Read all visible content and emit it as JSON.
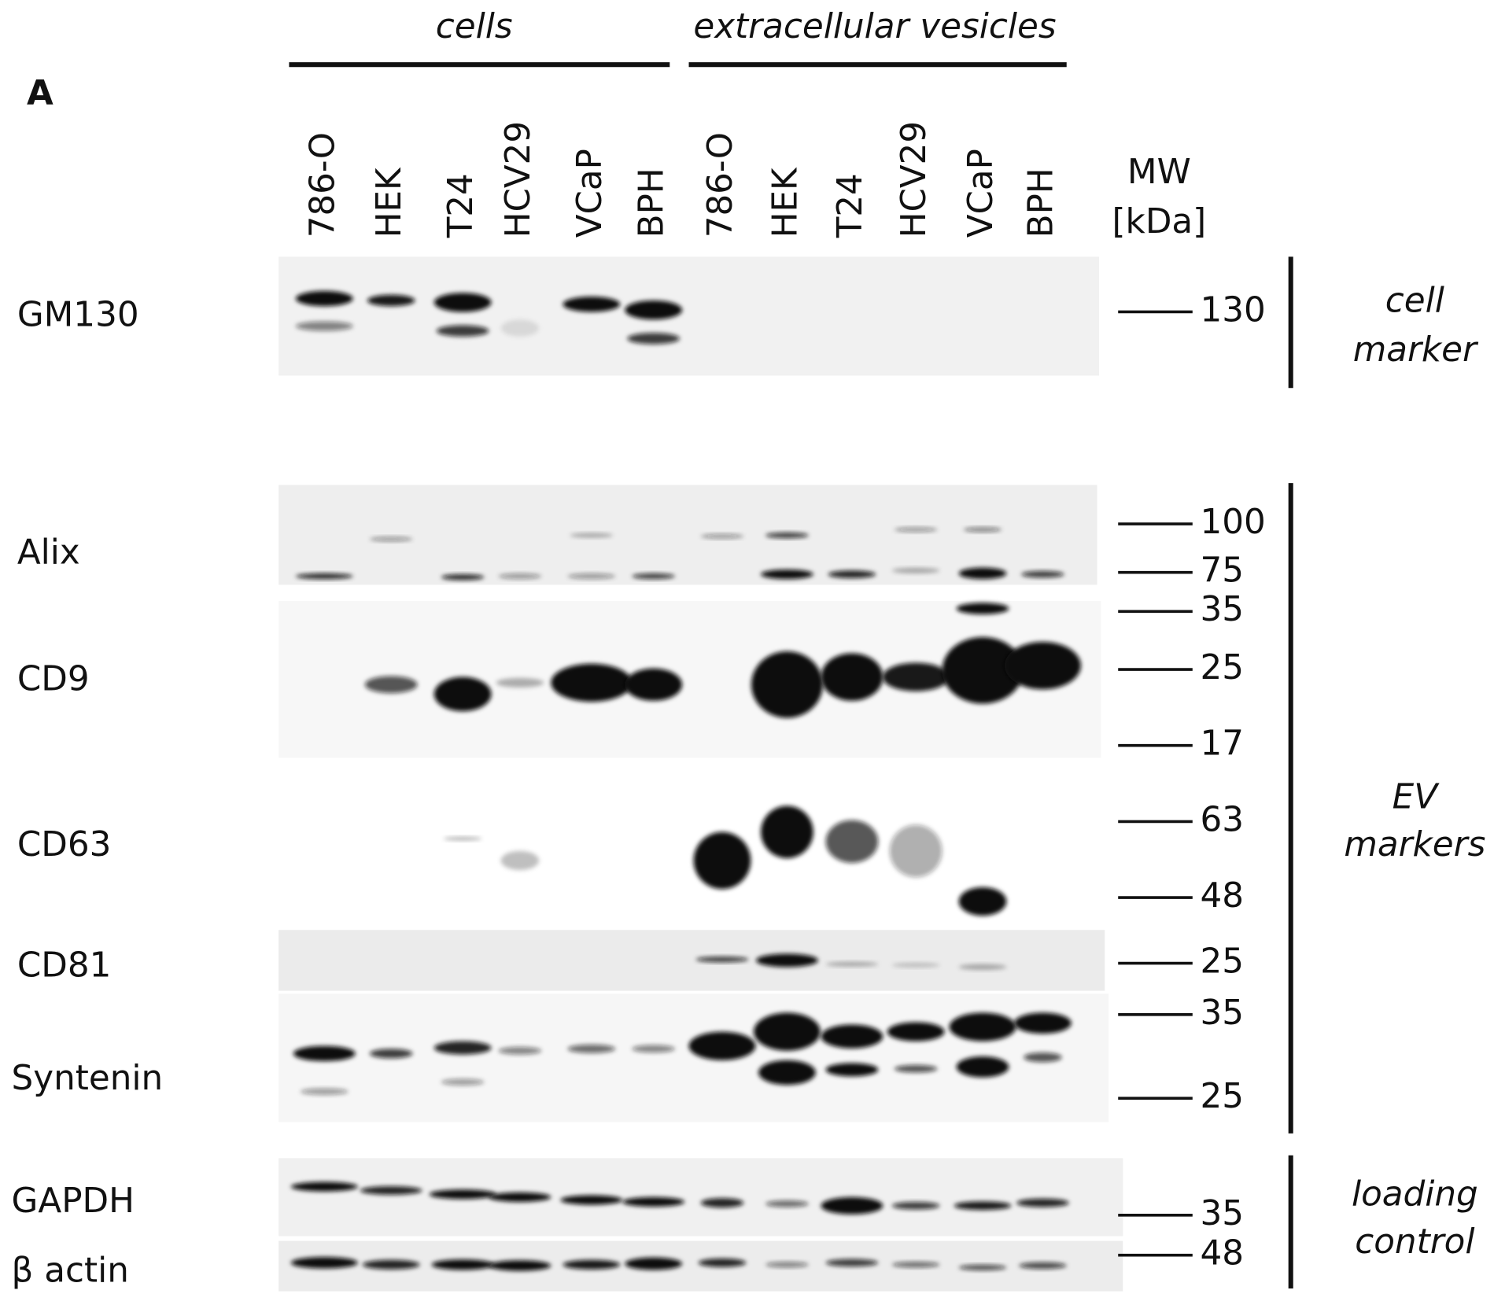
{
  "panel_label": "A",
  "groups": [
    "cells",
    "extracellular vesicles"
  ],
  "lanes": [
    "786-O",
    "HEK",
    "T24",
    "HCV29",
    "VCaP",
    "BPH",
    "786-O",
    "HEK",
    "T24",
    "HCV29",
    "VCaP",
    "BPH"
  ],
  "mw_header": [
    "MW",
    "[kDa]"
  ],
  "blots": [
    {
      "label": "GM130",
      "mw_markers": [
        130
      ]
    },
    {
      "label": "Alix",
      "mw_markers": [
        100,
        75
      ]
    },
    {
      "label": "CD9",
      "mw_markers": [
        35,
        25,
        17
      ]
    },
    {
      "label": "CD63",
      "mw_markers": [
        63,
        48
      ]
    },
    {
      "label": "CD81",
      "mw_markers": [
        25
      ]
    },
    {
      "label": "Syntenin",
      "mw_markers": [
        35,
        25
      ]
    },
    {
      "label": "GAPDH",
      "mw_markers": [
        35
      ]
    },
    {
      "label": "β actin",
      "mw_markers": [
        48
      ]
    }
  ],
  "side_labels": [
    {
      "lines": [
        "cell",
        "marker"
      ]
    },
    {
      "lines": [
        "EV",
        "markers"
      ]
    },
    {
      "lines": [
        "loading",
        "control"
      ]
    }
  ]
}
